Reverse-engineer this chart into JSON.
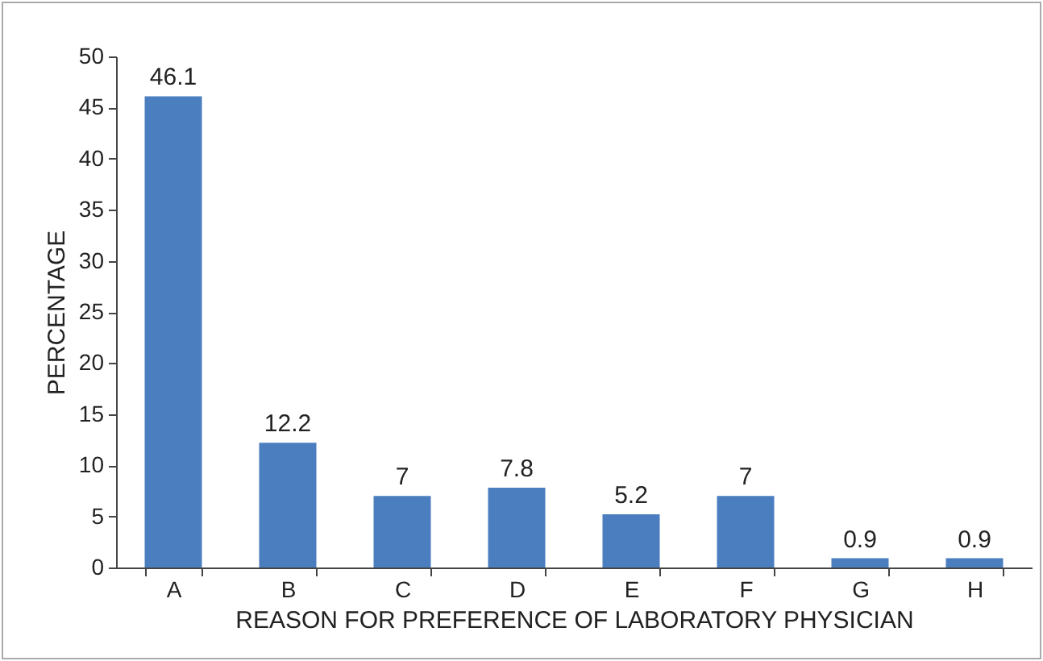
{
  "chart_data": {
    "type": "bar",
    "xlabel": "REASON FOR PREFERENCE OF LABORATORY PHYSICIAN",
    "ylabel": "PERCENTAGE",
    "categories": [
      "A",
      "B",
      "C",
      "D",
      "E",
      "F",
      "G",
      "H"
    ],
    "values": [
      46.1,
      12.2,
      7,
      7.8,
      5.2,
      7,
      0.9,
      0.9
    ],
    "color": "#4a7ebf",
    "ylim": [
      0,
      50
    ],
    "yticks": [
      0,
      5,
      10,
      15,
      20,
      25,
      30,
      35,
      40,
      45,
      50
    ],
    "data_labels": true,
    "grid": false
  }
}
